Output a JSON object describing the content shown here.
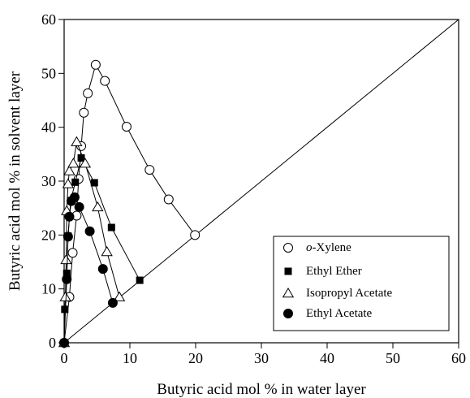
{
  "chart_data": {
    "type": "scatter",
    "title": "",
    "xlabel": "Butyric acid mol % in water layer",
    "ylabel": "Butyric acid mol % in solvent layer",
    "xlim": [
      0,
      60
    ],
    "ylim": [
      0,
      60
    ],
    "xticks": [
      "0",
      "10",
      "20",
      "30",
      "40",
      "50",
      "60"
    ],
    "yticks": [
      "0",
      "10",
      "20",
      "30",
      "40",
      "50",
      "60"
    ],
    "grid": false,
    "legend_position": "bottom-right",
    "reference_line": {
      "from": [
        0,
        0
      ],
      "to": [
        60,
        60
      ]
    },
    "series": [
      {
        "name_prefix": "o",
        "name_suffix": "-Xylene",
        "marker": "open-circle",
        "points": [
          [
            0,
            0
          ],
          [
            0.8,
            8.5
          ],
          [
            1.3,
            16.7
          ],
          [
            1.9,
            23.6
          ],
          [
            2.2,
            30.4
          ],
          [
            2.6,
            36.5
          ],
          [
            3.0,
            42.7
          ],
          [
            3.6,
            46.3
          ],
          [
            4.8,
            51.6
          ],
          [
            6.2,
            48.6
          ],
          [
            9.5,
            40.1
          ],
          [
            13.0,
            32.1
          ],
          [
            15.9,
            26.6
          ],
          [
            19.9,
            20.0
          ]
        ]
      },
      {
        "name": "Ethyl Ether",
        "marker": "filled-square",
        "points": [
          [
            0,
            0
          ],
          [
            0.1,
            6.2
          ],
          [
            0.4,
            12.9
          ],
          [
            0.6,
            19.8
          ],
          [
            1.0,
            26.4
          ],
          [
            1.7,
            29.8
          ],
          [
            2.6,
            34.3
          ],
          [
            4.6,
            29.7
          ],
          [
            7.2,
            21.4
          ],
          [
            11.5,
            11.6
          ]
        ]
      },
      {
        "name": "Isopropyl Acetate",
        "marker": "open-triangle",
        "points": [
          [
            0,
            0
          ],
          [
            0.2,
            8.5
          ],
          [
            0.3,
            15.4
          ],
          [
            0.4,
            24.5
          ],
          [
            0.6,
            29.5
          ],
          [
            0.8,
            31.9
          ],
          [
            1.4,
            33.3
          ],
          [
            1.9,
            37.3
          ],
          [
            3.2,
            33.3
          ],
          [
            5.1,
            25.2
          ],
          [
            6.5,
            16.9
          ],
          [
            8.4,
            8.5
          ]
        ]
      },
      {
        "name": "Ethyl Acetate",
        "marker": "filled-circle",
        "points": [
          [
            0,
            0
          ],
          [
            0.4,
            11.8
          ],
          [
            0.6,
            19.7
          ],
          [
            0.8,
            23.4
          ],
          [
            1.1,
            26.3
          ],
          [
            1.6,
            27.0
          ],
          [
            2.3,
            25.2
          ],
          [
            3.9,
            20.7
          ],
          [
            5.9,
            13.7
          ],
          [
            7.4,
            7.4
          ]
        ]
      }
    ]
  }
}
